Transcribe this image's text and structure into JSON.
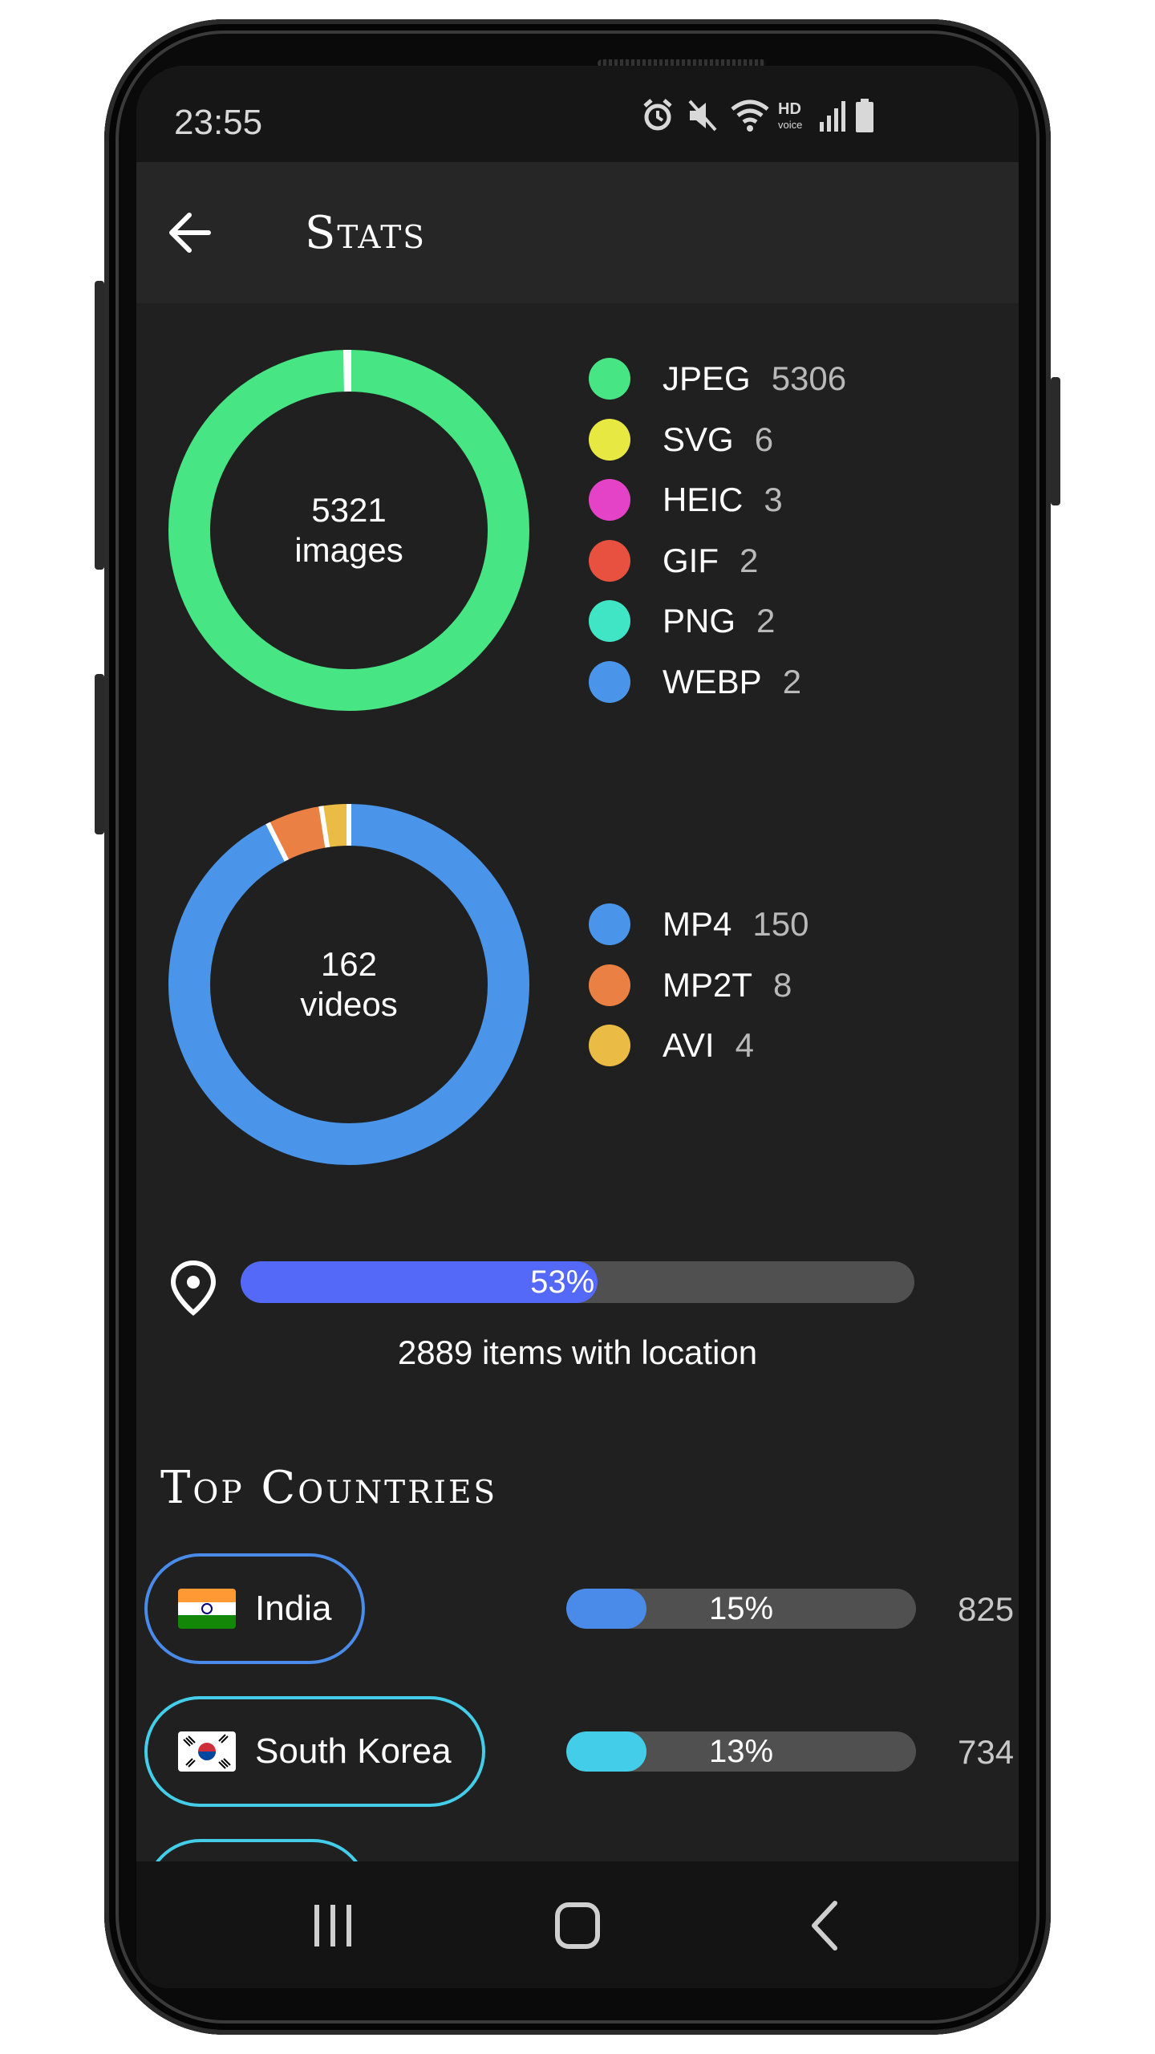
{
  "status_bar": {
    "time": "23:55",
    "icons": [
      "alarm-icon",
      "mute-icon",
      "wifi-icon",
      "hd-voice-icon",
      "signal-icon",
      "battery-icon"
    ]
  },
  "app_bar": {
    "title": "Stats",
    "back_icon": "arrow-left-icon"
  },
  "images": {
    "total": "5321",
    "unit": "images",
    "items": [
      {
        "name": "JPEG",
        "count": "5306",
        "color": "#47e583"
      },
      {
        "name": "SVG",
        "count": "6",
        "color": "#e8e842"
      },
      {
        "name": "HEIC",
        "count": "3",
        "color": "#e443c8"
      },
      {
        "name": "GIF",
        "count": "2",
        "color": "#e8503f"
      },
      {
        "name": "PNG",
        "count": "2",
        "color": "#3fe5c4"
      },
      {
        "name": "WEBP",
        "count": "2",
        "color": "#4a95ea"
      }
    ]
  },
  "videos": {
    "total": "162",
    "unit": "videos",
    "items": [
      {
        "name": "MP4",
        "count": "150",
        "color": "#4a95ea"
      },
      {
        "name": "MP2T",
        "count": "8",
        "color": "#ea8043"
      },
      {
        "name": "AVI",
        "count": "4",
        "color": "#ebbc45"
      }
    ]
  },
  "location": {
    "percent": 53,
    "percent_label": "53%",
    "caption": "2889 items with location",
    "fill_color": "#5469f7"
  },
  "top_countries": {
    "title": "Top Countries",
    "items": [
      {
        "name": "India",
        "flag": "india-flag",
        "percent": 15,
        "percent_label": "15%",
        "count": "825",
        "color": "#4a8ae8"
      },
      {
        "name": "South Korea",
        "flag": "south-korea-flag",
        "percent": 13,
        "percent_label": "13%",
        "count": "734",
        "color": "#43cde8"
      }
    ]
  },
  "nav_bar": {
    "buttons": [
      "recent-apps-icon",
      "home-icon",
      "back-icon"
    ]
  }
}
